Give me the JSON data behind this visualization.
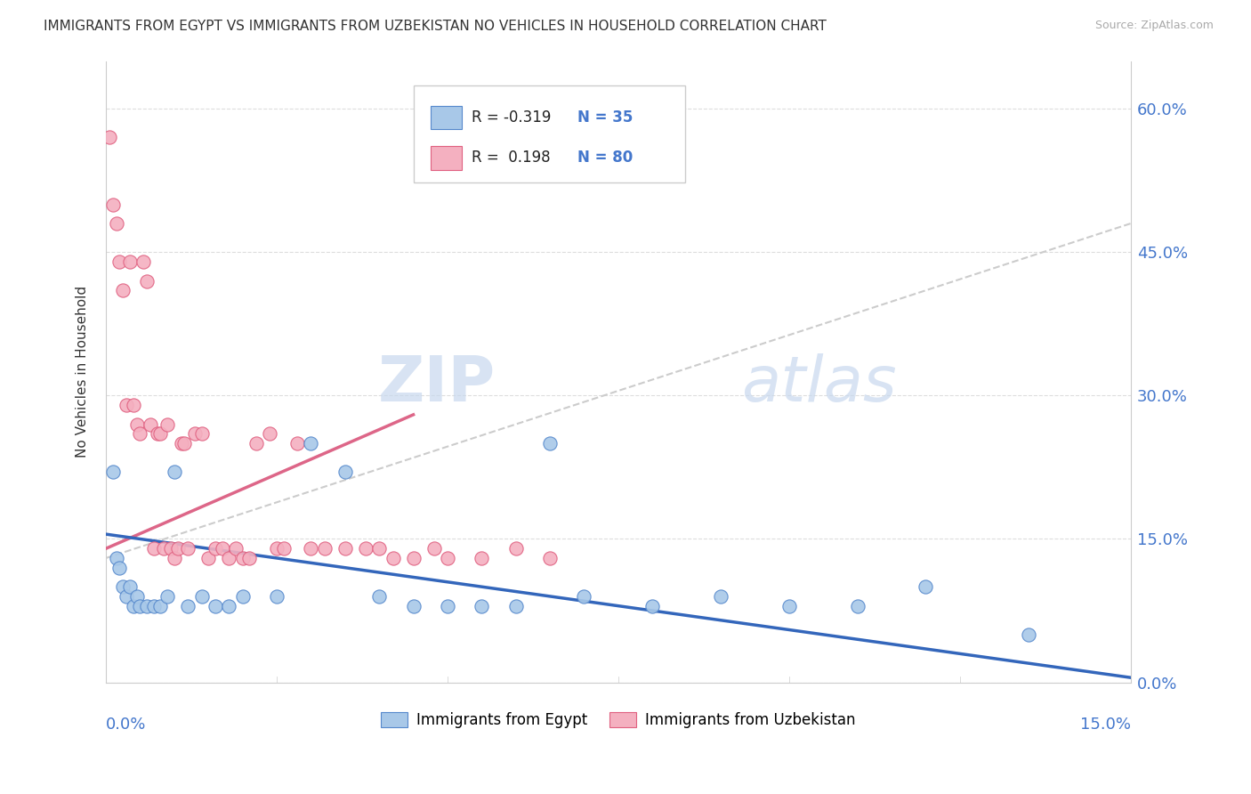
{
  "title": "IMMIGRANTS FROM EGYPT VS IMMIGRANTS FROM UZBEKISTAN NO VEHICLES IN HOUSEHOLD CORRELATION CHART",
  "source": "Source: ZipAtlas.com",
  "ylabel": "No Vehicles in Household",
  "ytick_vals": [
    0,
    15,
    30,
    45,
    60
  ],
  "xmin": 0,
  "xmax": 15,
  "ymin": 0,
  "ymax": 65,
  "legend_egypt_R": "-0.319",
  "legend_egypt_N": "35",
  "legend_uzbek_R": "0.198",
  "legend_uzbek_N": "80",
  "egypt_color": "#a8c8e8",
  "uzbek_color": "#f4b0c0",
  "egypt_edge_color": "#5588cc",
  "uzbek_edge_color": "#e06080",
  "egypt_line_color": "#3366bb",
  "uzbek_line_color": "#dd6688",
  "watermark_zip": "ZIP",
  "watermark_atlas": "atlas",
  "egypt_points_x": [
    0.1,
    0.15,
    0.2,
    0.25,
    0.3,
    0.35,
    0.4,
    0.45,
    0.5,
    0.6,
    0.7,
    0.8,
    0.9,
    1.0,
    1.2,
    1.4,
    1.6,
    1.8,
    2.0,
    2.5,
    3.0,
    3.5,
    4.0,
    4.5,
    5.0,
    5.5,
    6.0,
    6.5,
    7.0,
    8.0,
    9.0,
    10.0,
    11.0,
    12.0,
    13.5
  ],
  "egypt_points_y": [
    22,
    13,
    12,
    10,
    9,
    10,
    8,
    9,
    8,
    8,
    8,
    8,
    9,
    22,
    8,
    9,
    8,
    8,
    9,
    9,
    25,
    22,
    9,
    8,
    8,
    8,
    8,
    25,
    9,
    8,
    9,
    8,
    8,
    10,
    5
  ],
  "uzbek_points_x": [
    0.05,
    0.1,
    0.15,
    0.2,
    0.25,
    0.3,
    0.35,
    0.4,
    0.45,
    0.5,
    0.55,
    0.6,
    0.65,
    0.7,
    0.75,
    0.8,
    0.85,
    0.9,
    0.95,
    1.0,
    1.05,
    1.1,
    1.15,
    1.2,
    1.3,
    1.4,
    1.5,
    1.6,
    1.7,
    1.8,
    1.9,
    2.0,
    2.1,
    2.2,
    2.4,
    2.5,
    2.6,
    2.8,
    3.0,
    3.2,
    3.5,
    3.8,
    4.0,
    4.2,
    4.5,
    4.8,
    5.0,
    5.5,
    6.0,
    6.5
  ],
  "uzbek_points_y": [
    57,
    50,
    48,
    44,
    41,
    29,
    44,
    29,
    27,
    26,
    44,
    42,
    27,
    14,
    26,
    26,
    14,
    27,
    14,
    13,
    14,
    25,
    25,
    14,
    26,
    26,
    13,
    14,
    14,
    13,
    14,
    13,
    13,
    25,
    26,
    14,
    14,
    25,
    14,
    14,
    14,
    14,
    14,
    13,
    13,
    14,
    13,
    13,
    14,
    13
  ],
  "egypt_trend_x": [
    0,
    15
  ],
  "egypt_trend_y": [
    15.5,
    0.5
  ],
  "uzbek_trend_x": [
    0,
    4.5
  ],
  "uzbek_trend_y": [
    14.0,
    28.0
  ],
  "gray_trend_x": [
    0,
    15
  ],
  "gray_trend_y": [
    13.0,
    48.0
  ]
}
